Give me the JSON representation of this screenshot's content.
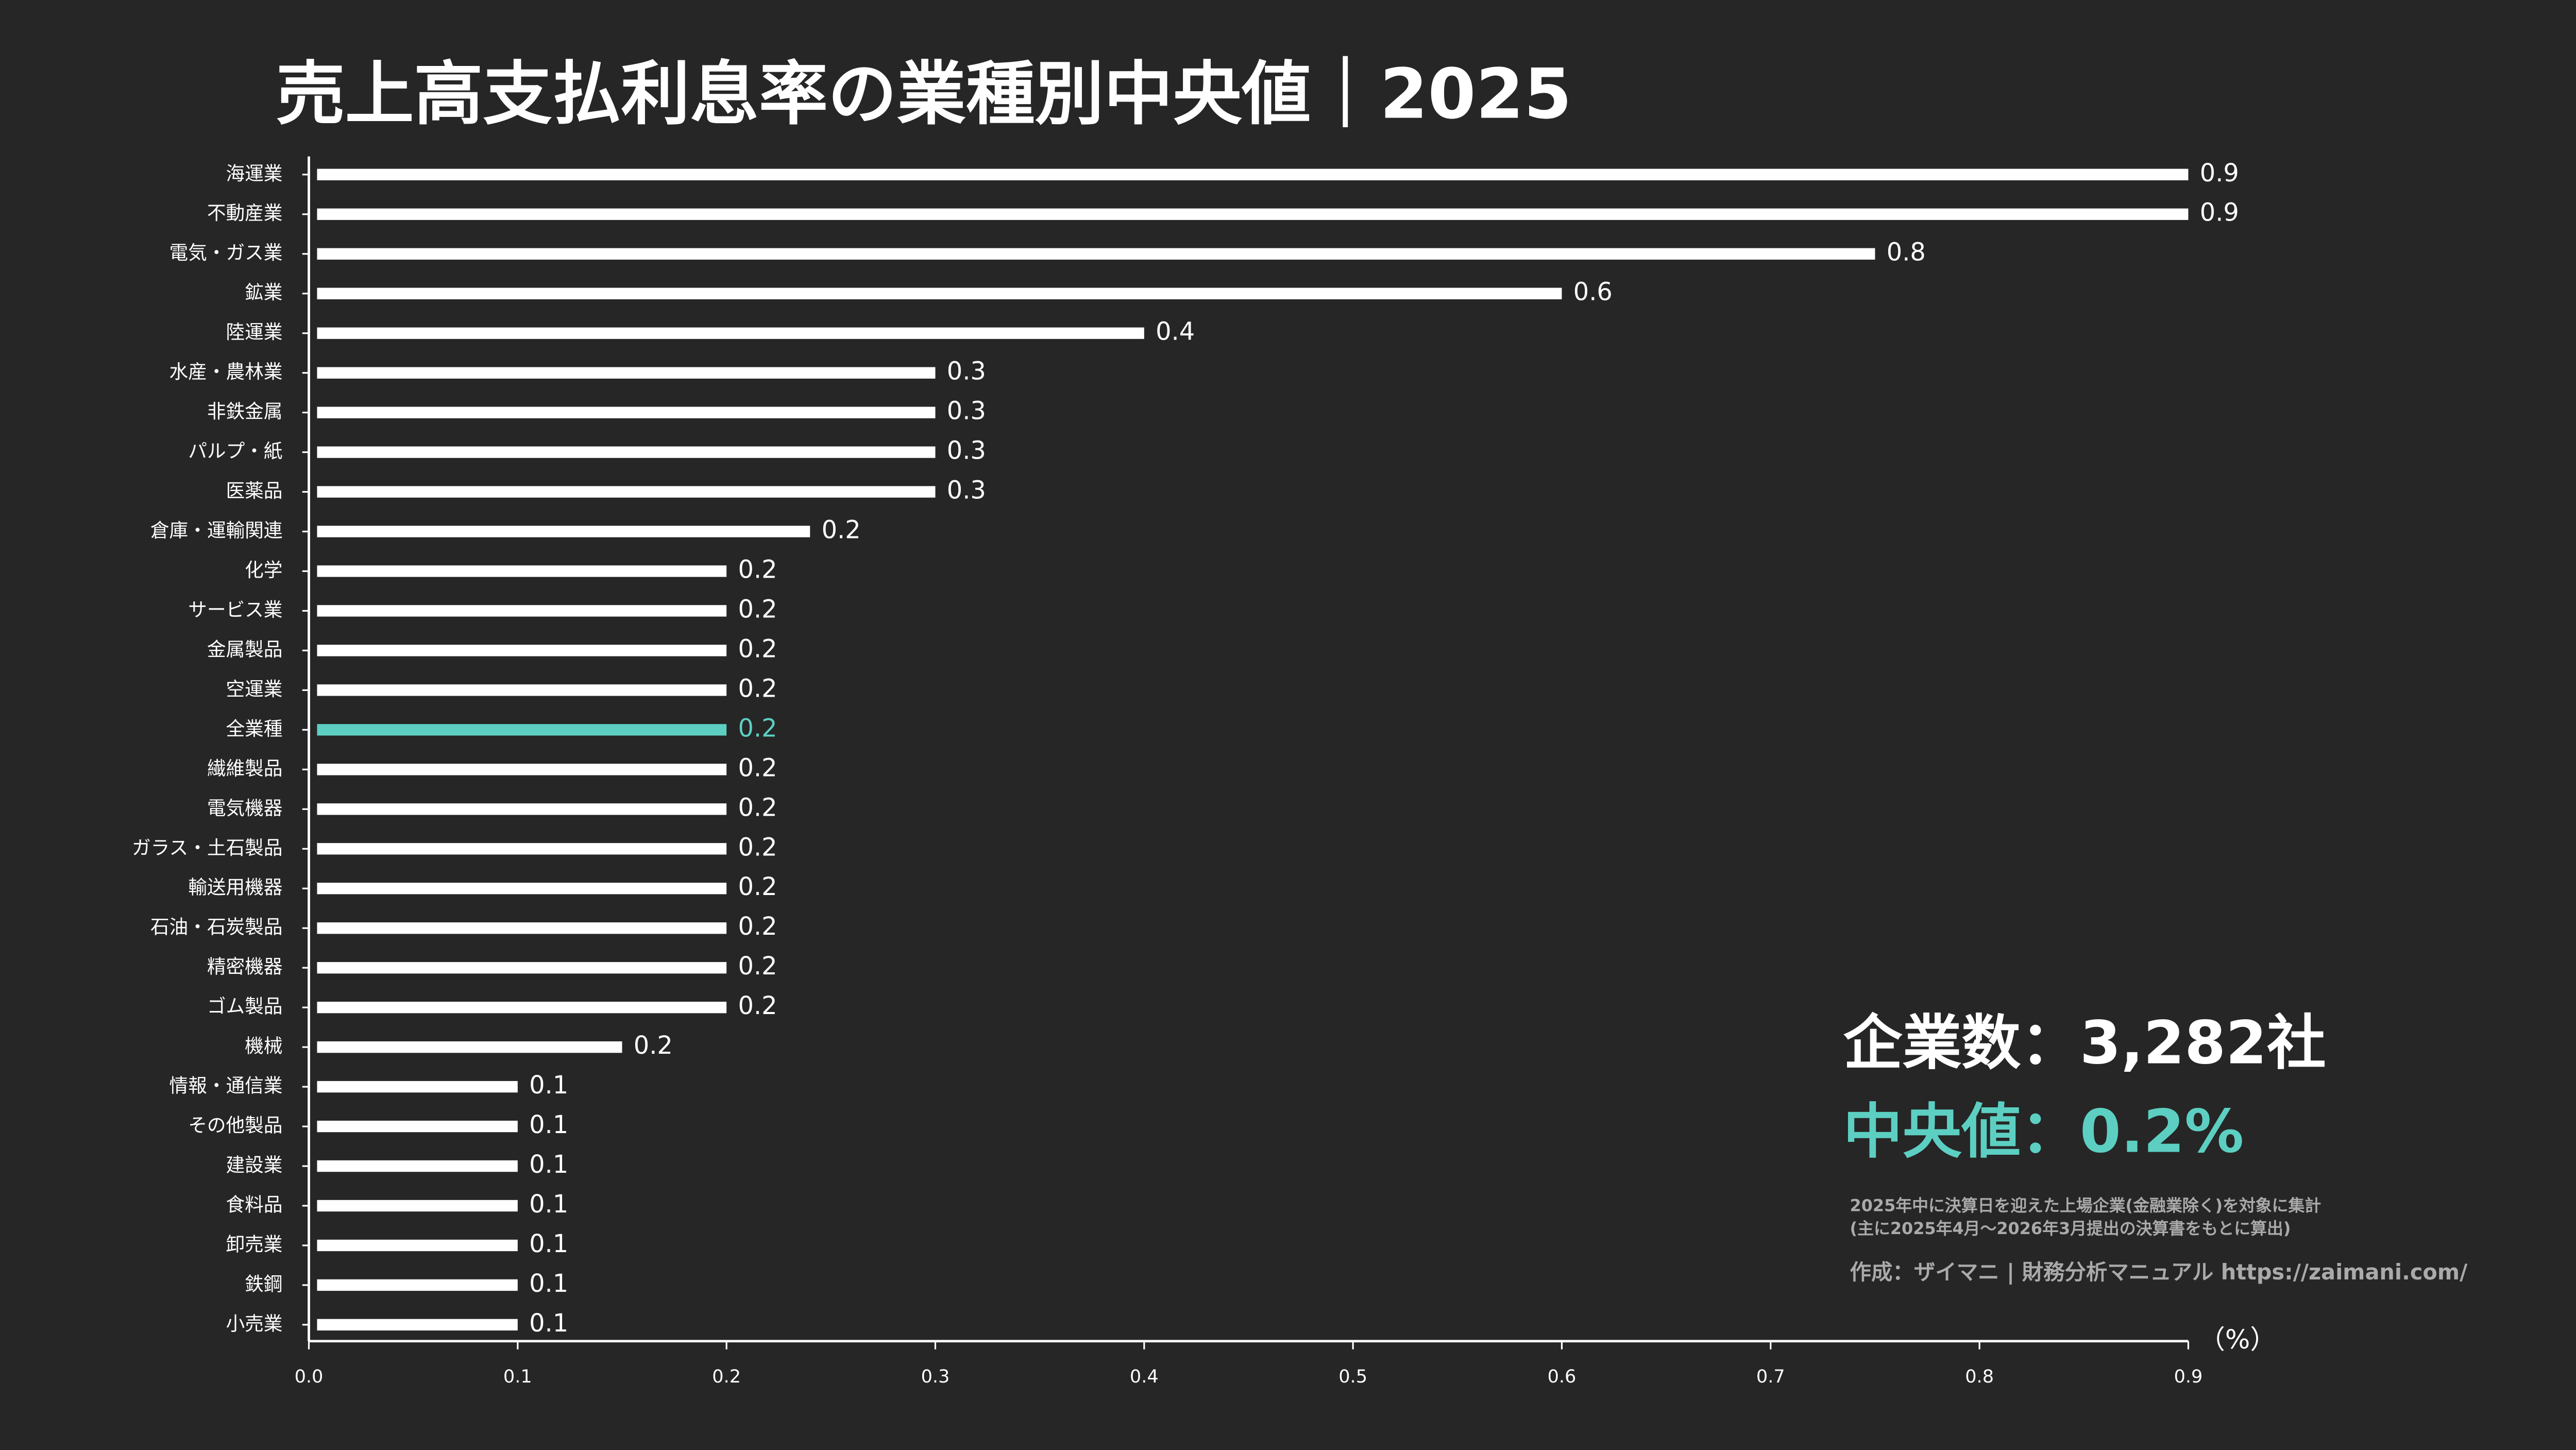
{
  "chart_data": {
    "type": "bar",
    "orientation": "horizontal",
    "title": "売上高支払利息率の業種別中央値｜2025",
    "categories": [
      "海運業",
      "不動産業",
      "電気・ガス業",
      "鉱業",
      "陸運業",
      "水産・農林業",
      "非鉄金属",
      "パルプ・紙",
      "医薬品",
      "倉庫・運輸関連",
      "化学",
      "サービス業",
      "金属製品",
      "空運業",
      "全業種",
      "繊維製品",
      "電気機器",
      "ガラス・土石製品",
      "輸送用機器",
      "石油・石炭製品",
      "精密機器",
      "ゴム製品",
      "機械",
      "情報・通信業",
      "その他製品",
      "建設業",
      "食料品",
      "卸売業",
      "鉄鋼",
      "小売業"
    ],
    "values": [
      0.9,
      0.9,
      0.75,
      0.6,
      0.4,
      0.3,
      0.3,
      0.3,
      0.3,
      0.24,
      0.2,
      0.2,
      0.2,
      0.2,
      0.2,
      0.2,
      0.2,
      0.2,
      0.2,
      0.2,
      0.2,
      0.2,
      0.15,
      0.1,
      0.1,
      0.1,
      0.1,
      0.1,
      0.1,
      0.1
    ],
    "value_labels": [
      "0.9",
      "0.9",
      "0.8",
      "0.6",
      "0.4",
      "0.3",
      "0.3",
      "0.3",
      "0.3",
      "0.2",
      "0.2",
      "0.2",
      "0.2",
      "0.2",
      "0.2",
      "0.2",
      "0.2",
      "0.2",
      "0.2",
      "0.2",
      "0.2",
      "0.2",
      "0.2",
      "0.1",
      "0.1",
      "0.1",
      "0.1",
      "0.1",
      "0.1",
      "0.1"
    ],
    "colors": [
      "#ffffff",
      "#ffffff",
      "#ffffff",
      "#ffffff",
      "#ffffff",
      "#ffffff",
      "#ffffff",
      "#ffffff",
      "#ffffff",
      "#ffffff",
      "#ffffff",
      "#ffffff",
      "#ffffff",
      "#ffffff",
      "#5ccfc2",
      "#ffffff",
      "#ffffff",
      "#ffffff",
      "#ffffff",
      "#ffffff",
      "#ffffff",
      "#ffffff",
      "#ffffff",
      "#ffffff",
      "#ffffff",
      "#ffffff",
      "#ffffff",
      "#ffffff",
      "#ffffff",
      "#ffffff"
    ],
    "xlim": [
      0,
      0.9
    ],
    "xticks": [
      {
        "value": 0,
        "label": "0.0"
      },
      0.1,
      0.2,
      0.3,
      0.4,
      0.5,
      0.6,
      0.7,
      0.8,
      0.9
    ],
    "x_unit": "（%）",
    "annotations": [
      "企業数：3,282社",
      "中央値：0.2%",
      "2025年中に決算日を迎えた上場企業(金融業除く)を対象に集計",
      "(主に2025年4月〜2026年3月提出の決算書をもとに算出)",
      "作成：ザイマニ | 財務分析マニュアル https://zaimani.com/"
    ]
  }
}
